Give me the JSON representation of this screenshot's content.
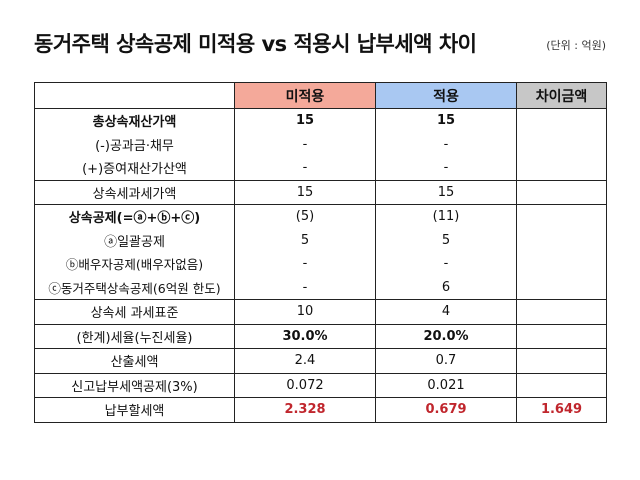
{
  "title": "동거주택 상속공제 미적용 vs 적용시 납부세액 차이",
  "unit": "(단위 : 억원)",
  "headers": {
    "col0": "",
    "col1": "미적용",
    "col2": "적용",
    "col3": "차이금액"
  },
  "rows": [
    {
      "label": "총상속재산가액",
      "v1": "15",
      "v2": "15",
      "v3": ""
    },
    {
      "label": "(-)공과금·채무",
      "v1": "-",
      "v2": "-",
      "v3": ""
    },
    {
      "label": "(+)증여재산가산액",
      "v1": "-",
      "v2": "-",
      "v3": ""
    },
    {
      "label": "상속세과세가액",
      "v1": "15",
      "v2": "15",
      "v3": ""
    },
    {
      "label": "상속공제(=ⓐ+ⓑ+ⓒ)",
      "v1": "(5)",
      "v2": "(11)",
      "v3": ""
    },
    {
      "label": "ⓐ일괄공제",
      "v1": "5",
      "v2": "5",
      "v3": ""
    },
    {
      "label": "ⓑ배우자공제(배우자없음)",
      "v1": "-",
      "v2": "-",
      "v3": ""
    },
    {
      "label": "ⓒ동거주택상속공제(6억원 한도)",
      "v1": "-",
      "v2": "6",
      "v3": ""
    },
    {
      "label": "상속세 과세표준",
      "v1": "10",
      "v2": "4",
      "v3": ""
    },
    {
      "label": "(한계)세율(누진세율)",
      "v1": "30.0%",
      "v2": "20.0%",
      "v3": ""
    },
    {
      "label": "산출세액",
      "v1": "2.4",
      "v2": "0.7",
      "v3": ""
    },
    {
      "label": "신고납부세액공제(3%)",
      "v1": "0.072",
      "v2": "0.021",
      "v3": ""
    },
    {
      "label": "납부할세액",
      "v1": "2.328",
      "v2": "0.679",
      "v3": "1.649"
    }
  ]
}
